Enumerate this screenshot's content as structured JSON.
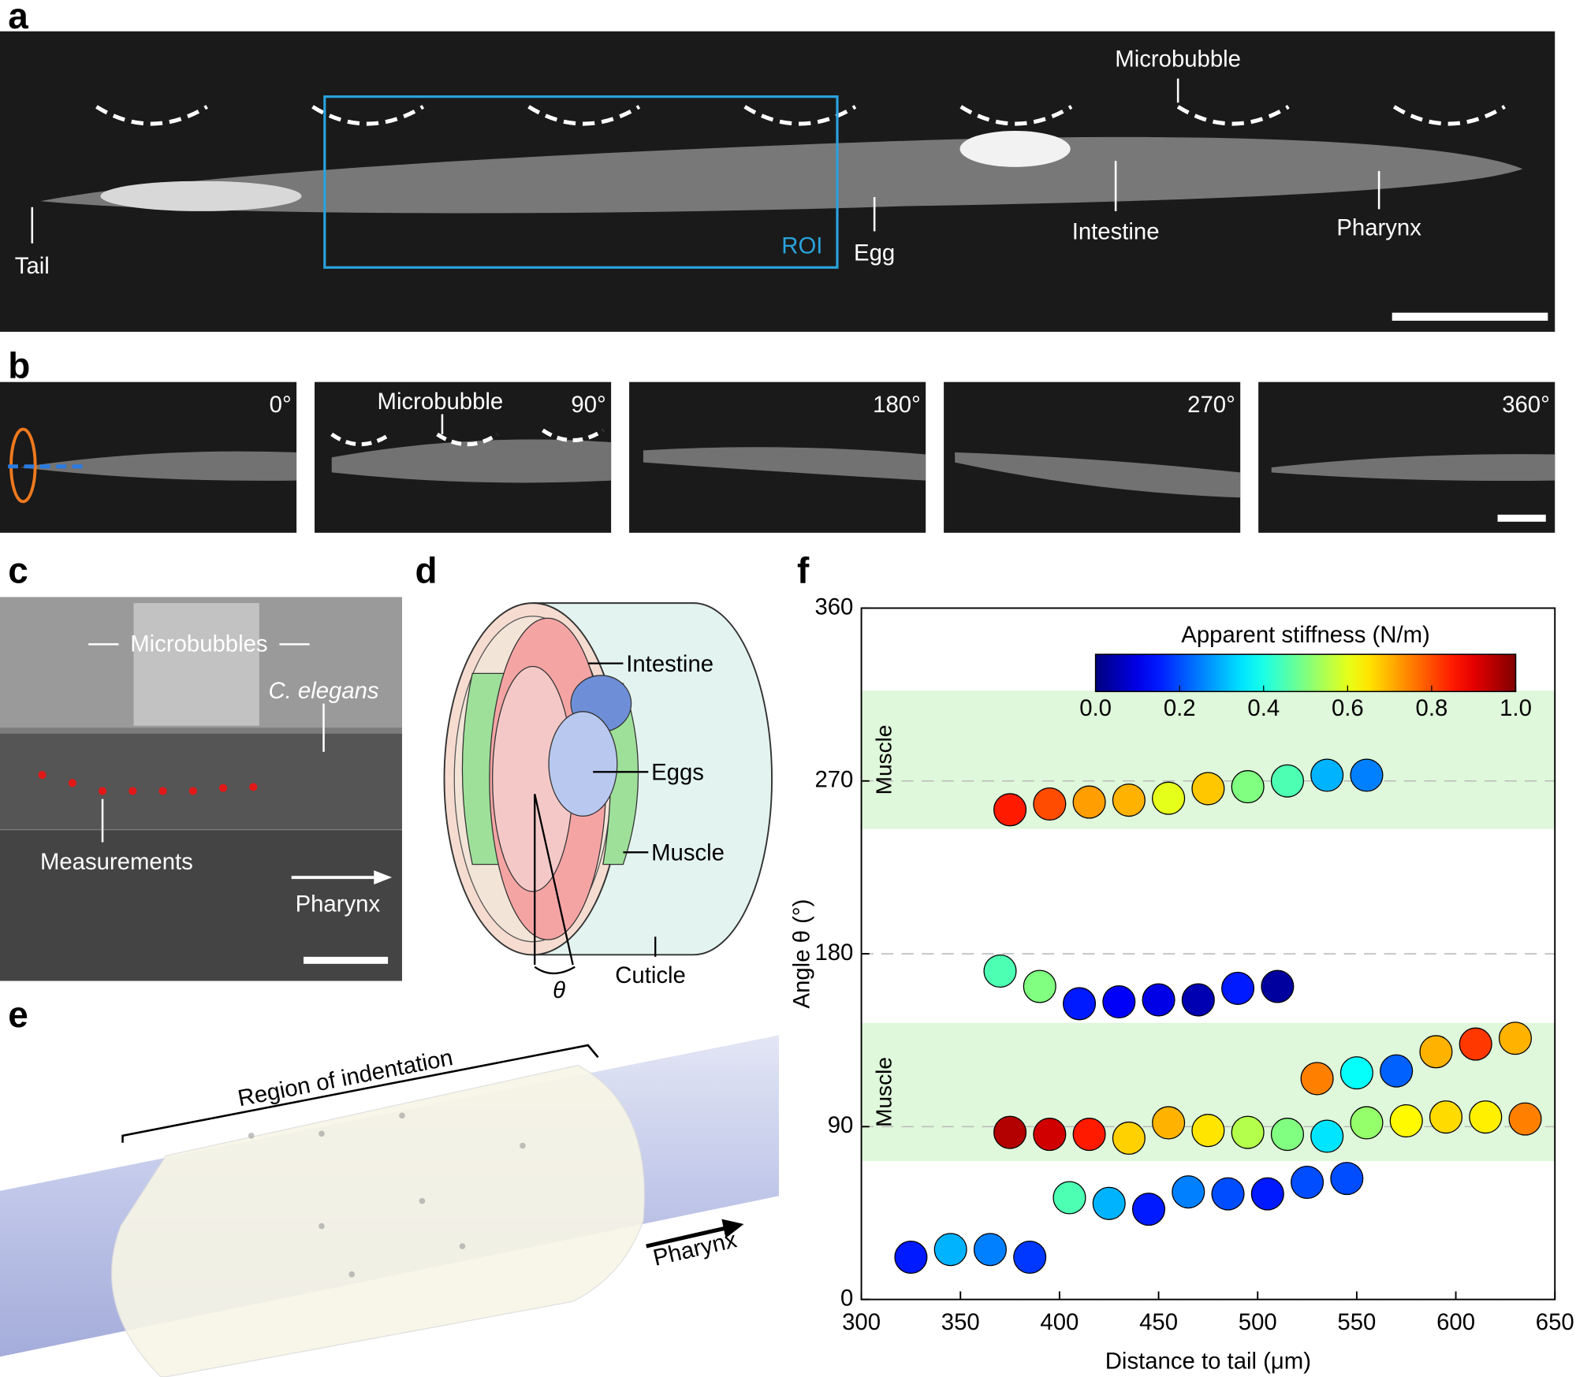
{
  "panels": {
    "a": "a",
    "b": "b",
    "c": "c",
    "d": "d",
    "e": "e",
    "f": "f"
  },
  "panel_a": {
    "tail": "Tail",
    "roi": "ROI",
    "egg": "Egg",
    "intestine": "Intestine",
    "pharynx": "Pharynx",
    "microbubble": "Microbubble"
  },
  "panel_b": {
    "angles": [
      "0°",
      "90°",
      "180°",
      "270°",
      "360°"
    ],
    "microbubble": "Microbubble"
  },
  "panel_c": {
    "microbubbles": "Microbubbles",
    "species": "C. elegans",
    "measurements": "Measurements",
    "pharynx": "Pharynx"
  },
  "panel_d": {
    "intestine": "Intestine",
    "eggs": "Eggs",
    "muscle": "Muscle",
    "cuticle": "Cuticle",
    "theta": "θ"
  },
  "panel_e": {
    "region": "Region of indentation",
    "pharynx": "Pharynx"
  },
  "chart_data": {
    "type": "scatter",
    "x_label": "Distance to tail (μm)",
    "y_label": "Angle θ (°)",
    "xlim": [
      300,
      650
    ],
    "xticks": [
      300,
      350,
      400,
      450,
      500,
      550,
      600,
      650
    ],
    "ylim": [
      0,
      360
    ],
    "yticks": [
      0,
      90,
      180,
      270,
      360
    ],
    "grid": true,
    "bands": [
      {
        "label": "Muscle",
        "range": [
          245,
          317
        ]
      },
      {
        "label": "Muscle",
        "range": [
          72,
          144
        ]
      }
    ],
    "colorbar": {
      "label": "Apparent stiffness (N/m)",
      "colormap": "jet",
      "range": [
        0,
        1
      ],
      "ticks": [
        {
          "value": 0,
          "label": "0.0"
        },
        0.2,
        0.4,
        0.6,
        0.8,
        {
          "value": 1,
          "label": "1.0"
        }
      ]
    },
    "x": [
      375,
      395,
      415,
      435,
      455,
      475,
      495,
      515,
      535,
      555,
      370,
      390,
      410,
      430,
      450,
      470,
      490,
      510,
      530,
      550,
      570,
      590,
      610,
      630,
      375,
      395,
      415,
      435,
      455,
      475,
      495,
      515,
      535,
      555,
      575,
      595,
      615,
      635,
      405,
      425,
      445,
      465,
      485,
      505,
      525,
      545,
      325,
      345,
      365,
      385
    ],
    "values": [
      255,
      258,
      259,
      260,
      261,
      266,
      267,
      270,
      273,
      273,
      171,
      163,
      154,
      155,
      156,
      156,
      162,
      163,
      115,
      118,
      119,
      129,
      133,
      136,
      87,
      86,
      86,
      84,
      92,
      88,
      87,
      86,
      85,
      92,
      93,
      95,
      95,
      94,
      53,
      50,
      47,
      56,
      55,
      55,
      61,
      63,
      22,
      26,
      26,
      22
    ],
    "stiffness": [
      0.85,
      0.8,
      0.72,
      0.7,
      0.6,
      0.68,
      0.5,
      0.45,
      0.3,
      0.25,
      0.45,
      0.5,
      0.15,
      0.12,
      0.1,
      0.05,
      0.15,
      0.03,
      0.75,
      0.38,
      0.22,
      0.7,
      0.82,
      0.7,
      0.95,
      0.92,
      0.85,
      0.67,
      0.7,
      0.65,
      0.55,
      0.5,
      0.35,
      0.52,
      0.63,
      0.66,
      0.64,
      0.75,
      0.45,
      0.3,
      0.15,
      0.25,
      0.2,
      0.15,
      0.2,
      0.2,
      0.15,
      0.3,
      0.25,
      0.18
    ]
  }
}
